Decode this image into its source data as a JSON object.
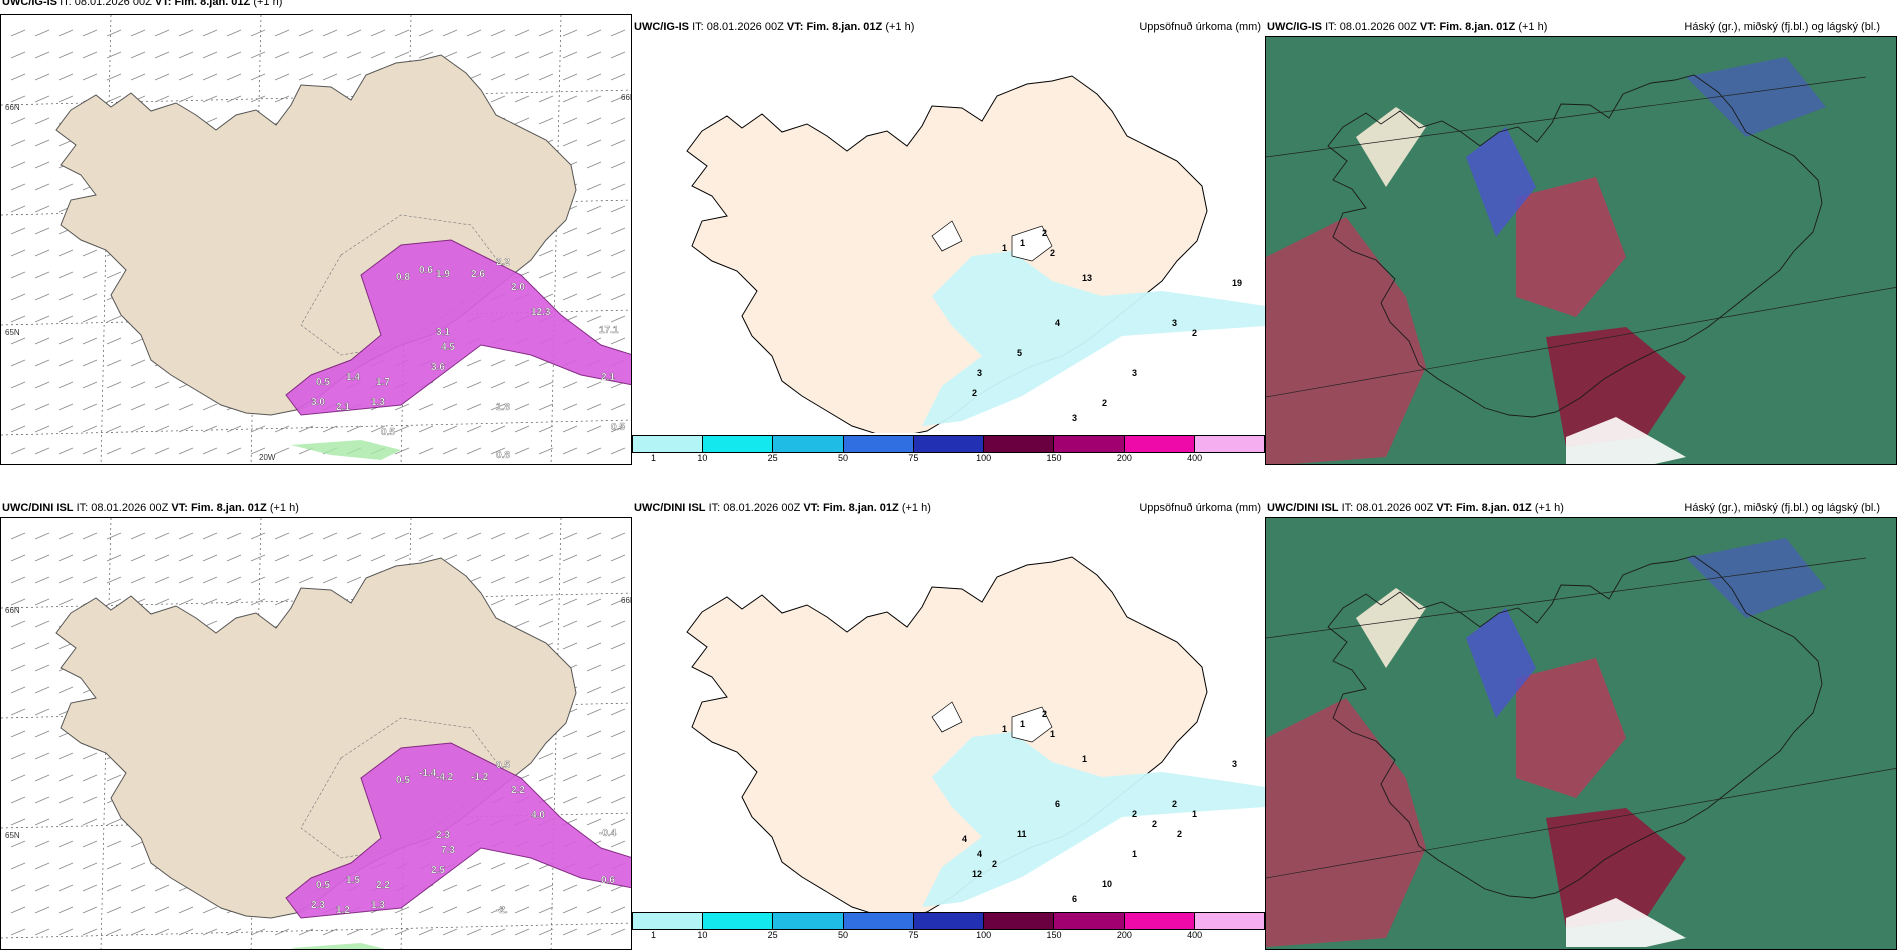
{
  "rows": [
    {
      "model": "UWC/IG-IS",
      "it_prefix": "IT:",
      "it_value": "08.01.2026 00Z",
      "vt_prefix": "VT:",
      "vt_value": "Fim. 8.jan. 01Z",
      "lead": "(+1 h)",
      "panel1_labels": [
        "0.5",
        "1.4",
        "3.0",
        "2.1",
        "1.3",
        "1.7",
        "3.6",
        "4.5",
        "3.1",
        "0.8",
        "0.6",
        "1.9",
        "2.6",
        "2.2",
        "2.0",
        "12.3",
        "17.1",
        "2.1",
        "1.8",
        "0.5",
        "0.5",
        "0.8"
      ],
      "panel2_labels": [
        "1",
        "1",
        "2",
        "2",
        "13",
        "19",
        "4",
        "5",
        "3",
        "2",
        "3",
        "2",
        "3",
        "2",
        "3"
      ]
    },
    {
      "model": "UWC/DINI ISL",
      "it_prefix": "IT:",
      "it_value": "08.01.2026 00Z",
      "vt_prefix": "VT:",
      "vt_value": "Fim. 8.jan. 01Z",
      "lead": "(+1 h)",
      "panel1_labels": [
        "0.5",
        "1.5",
        "2.3",
        "1.2",
        "1.3",
        "2.2",
        "2.5",
        "7.3",
        "2.3",
        "0.5",
        "-1.4",
        "-4.2",
        "-1.2",
        "0.5",
        "2.2",
        "4.0",
        "-0.4",
        "0.6",
        "-2."
      ],
      "panel2_labels": [
        "1",
        "1",
        "2",
        "1",
        "1",
        "3",
        "6",
        "11",
        "4",
        "12",
        "2",
        "1",
        "1",
        "10",
        "6",
        "2",
        "4",
        "2",
        "2",
        "2"
      ]
    }
  ],
  "panel2_title": "Uppsöfnuð úrkoma (mm)",
  "panel3_title": "Háský (gr.), miðský (fj.bl.) og lágský (bl.)",
  "axis_labels": {
    "lat_top": "66N",
    "lat_mid": "65N",
    "lon": "20W"
  },
  "colorbar": {
    "ticks": [
      "1",
      "10",
      "25",
      "50",
      "75",
      "100",
      "150",
      "200",
      "400"
    ],
    "colors": [
      "#b3f5f7",
      "#14e8ef",
      "#1fbde6",
      "#2f6fe2",
      "#2230b3",
      "#6b0040",
      "#a00070",
      "#ee0aa8",
      "#f5aef0"
    ]
  },
  "colors": {
    "land_wind": "#e9dcc9",
    "land_precip": "#fdeee0",
    "magenta": "#d860e0",
    "cyan_precip": "#c8f4f8",
    "cloud_green": "#3d7f62",
    "cloud_red": "#a8425b",
    "cloud_blue": "#4a57c8"
  }
}
